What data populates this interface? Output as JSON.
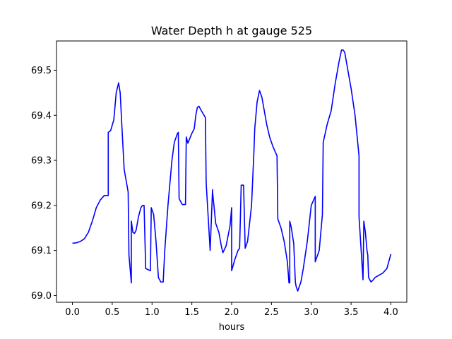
{
  "chart_data": {
    "type": "line",
    "title": "Water Depth h at gauge 525",
    "xlabel": "hours",
    "ylabel": "",
    "xlim": [
      -0.2,
      4.2
    ],
    "ylim": [
      68.985,
      69.565
    ],
    "xticks": [
      0.0,
      0.5,
      1.0,
      1.5,
      2.0,
      2.5,
      3.0,
      3.5,
      4.0
    ],
    "xtick_labels": [
      "0.0",
      "0.5",
      "1.0",
      "1.5",
      "2.0",
      "2.5",
      "3.0",
      "3.5",
      "4.0"
    ],
    "yticks": [
      69.0,
      69.1,
      69.2,
      69.3,
      69.4,
      69.5
    ],
    "ytick_labels": [
      "69.0",
      "69.1",
      "69.2",
      "69.3",
      "69.4",
      "69.5"
    ],
    "grid": false,
    "legend": null,
    "series": [
      {
        "color": "#0000ff",
        "x": [
          0.0,
          0.05,
          0.1,
          0.15,
          0.2,
          0.25,
          0.3,
          0.35,
          0.4,
          0.43,
          0.45,
          0.45,
          0.48,
          0.52,
          0.55,
          0.58,
          0.6,
          0.62,
          0.65,
          0.7,
          0.71,
          0.74,
          0.74,
          0.76,
          0.78,
          0.8,
          0.83,
          0.86,
          0.88,
          0.9,
          0.92,
          0.92,
          0.98,
          0.99,
          1.02,
          1.05,
          1.08,
          1.11,
          1.14,
          1.16,
          1.2,
          1.25,
          1.28,
          1.32,
          1.33,
          1.34,
          1.38,
          1.42,
          1.43,
          1.45,
          1.5,
          1.53,
          1.55,
          1.57,
          1.59,
          1.62,
          1.67,
          1.68,
          1.73,
          1.76,
          1.76,
          1.8,
          1.84,
          1.87,
          1.89,
          1.93,
          1.98,
          2.0,
          2.0,
          2.04,
          2.08,
          2.1,
          2.12,
          2.15,
          2.17,
          2.2,
          2.25,
          2.28,
          2.29,
          2.32,
          2.35,
          2.38,
          2.41,
          2.44,
          2.48,
          2.52,
          2.57,
          2.58,
          2.58,
          2.62,
          2.66,
          2.7,
          2.72,
          2.73,
          2.73,
          2.75,
          2.78,
          2.8,
          2.81,
          2.83,
          2.85,
          2.87,
          2.9,
          2.95,
          3.0,
          3.05,
          3.05,
          3.1,
          3.14,
          3.15,
          3.2,
          3.25,
          3.3,
          3.35,
          3.38,
          3.4,
          3.42,
          3.45,
          3.5,
          3.55,
          3.6,
          3.6,
          3.65,
          3.66,
          3.68,
          3.7,
          3.71,
          3.72,
          3.75,
          3.78,
          3.8,
          3.85,
          3.9,
          3.95,
          4.0
        ],
        "y": [
          69.116,
          69.117,
          69.12,
          69.126,
          69.14,
          69.165,
          69.195,
          69.212,
          69.222,
          69.222,
          69.222,
          69.362,
          69.366,
          69.39,
          69.45,
          69.472,
          69.45,
          69.38,
          69.28,
          69.23,
          69.09,
          69.028,
          69.165,
          69.14,
          69.138,
          69.145,
          69.175,
          69.195,
          69.2,
          69.2,
          69.062,
          69.06,
          69.055,
          69.195,
          69.18,
          69.12,
          69.04,
          69.03,
          69.03,
          69.1,
          69.2,
          69.3,
          69.34,
          69.36,
          69.362,
          69.215,
          69.202,
          69.202,
          69.352,
          69.338,
          69.36,
          69.37,
          69.4,
          69.418,
          69.42,
          69.41,
          69.395,
          69.25,
          69.1,
          69.235,
          69.23,
          69.16,
          69.14,
          69.11,
          69.095,
          69.11,
          69.155,
          69.195,
          69.055,
          69.08,
          69.1,
          69.105,
          69.245,
          69.245,
          69.105,
          69.12,
          69.2,
          69.32,
          69.37,
          69.43,
          69.455,
          69.44,
          69.41,
          69.38,
          69.35,
          69.33,
          69.31,
          69.17,
          69.17,
          69.15,
          69.12,
          69.075,
          69.028,
          69.028,
          69.165,
          69.15,
          69.115,
          69.03,
          69.02,
          69.01,
          69.02,
          69.03,
          69.06,
          69.12,
          69.2,
          69.22,
          69.075,
          69.1,
          69.18,
          69.34,
          69.38,
          69.41,
          69.47,
          69.52,
          69.545,
          69.545,
          69.54,
          69.51,
          69.46,
          69.4,
          69.31,
          69.175,
          69.035,
          69.165,
          69.14,
          69.1,
          69.09,
          69.04,
          69.03,
          69.035,
          69.04,
          69.045,
          69.05,
          69.06,
          69.092
        ]
      }
    ]
  }
}
